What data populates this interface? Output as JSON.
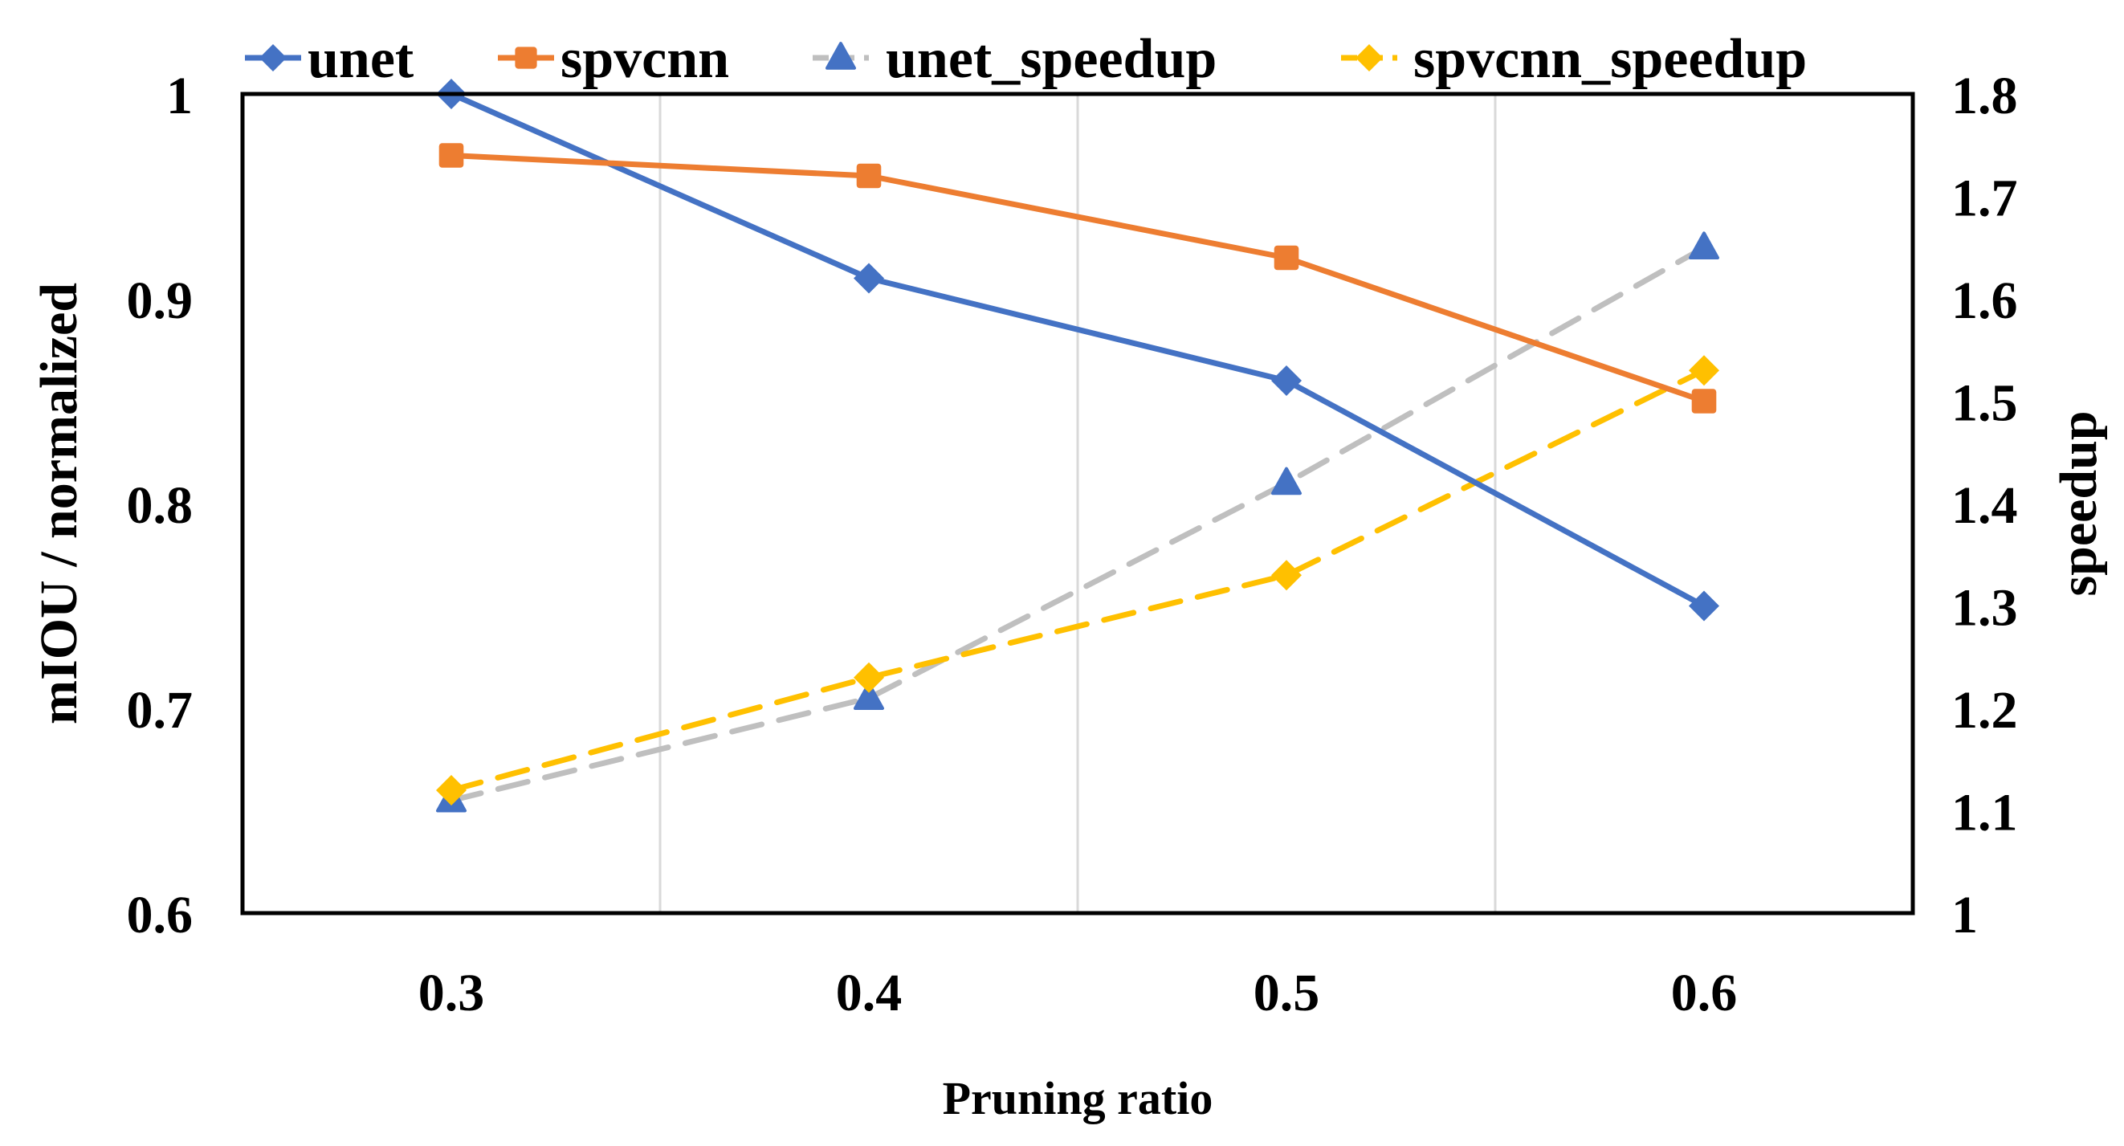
{
  "chart_data": {
    "type": "line",
    "categories": [
      "0.3",
      "0.4",
      "0.5",
      "0.6"
    ],
    "xlabel": "Pruning ratio",
    "ylabel": "mIOU / normalized",
    "y2label": "speedup",
    "ylim": [
      0.6,
      1.0
    ],
    "y2lim": [
      1.0,
      1.8
    ],
    "yticks": [
      "0.6",
      "0.7",
      "0.8",
      "0.9",
      "1"
    ],
    "y2ticks": [
      "1",
      "1.1",
      "1.2",
      "1.3",
      "1.4",
      "1.5",
      "1.6",
      "1.7",
      "1.8"
    ],
    "grid": "vertical",
    "legend_position": "top",
    "series": [
      {
        "name": "unet",
        "axis": "left",
        "values": [
          1.0,
          0.91,
          0.86,
          0.75
        ],
        "color": "#4472C4",
        "marker": "diamond",
        "dash": "solid"
      },
      {
        "name": "spvcnn",
        "axis": "left",
        "values": [
          0.97,
          0.96,
          0.92,
          0.85
        ],
        "color": "#ED7D31",
        "marker": "square",
        "dash": "solid"
      },
      {
        "name": "unet_speedup",
        "axis": "right",
        "values": [
          1.11,
          1.21,
          1.42,
          1.65
        ],
        "color": "#BFBFBF",
        "markerColor": "#4472C4",
        "marker": "triangle",
        "dash": "dashed"
      },
      {
        "name": "spvcnn_speedup",
        "axis": "right",
        "values": [
          1.12,
          1.23,
          1.33,
          1.53
        ],
        "color": "#FFC000",
        "marker": "diamond",
        "dash": "dashed"
      }
    ]
  }
}
